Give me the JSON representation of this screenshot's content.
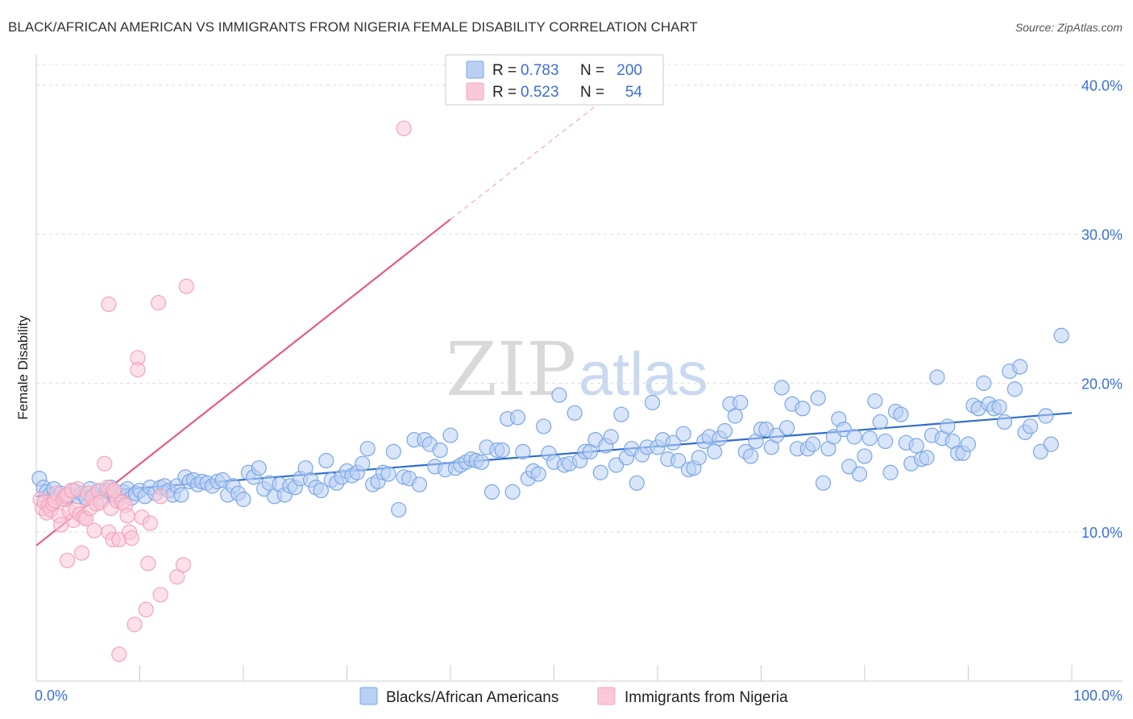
{
  "chart_data": {
    "type": "scatter",
    "title": "BLACK/AFRICAN AMERICAN VS IMMIGRANTS FROM NIGERIA FEMALE DISABILITY CORRELATION CHART",
    "source": "Source: ZipAtlas.com",
    "xlabel": "",
    "ylabel": "Female Disability",
    "xlim": [
      0,
      100
    ],
    "ylim": [
      0,
      41.5
    ],
    "x_tick_labels": [
      "0.0%",
      "100.0%"
    ],
    "y_ticks": [
      10,
      20,
      30,
      40
    ],
    "y_tick_labels": [
      "10.0%",
      "20.0%",
      "30.0%",
      "40.0%"
    ],
    "grid": true,
    "legend_position": "top-center",
    "watermark": {
      "zip": "ZIP",
      "atlas": "atlas"
    },
    "stats_legend": [
      {
        "r_label": "R =",
        "r_value": "0.783",
        "n_label": "N =",
        "n_value": "200"
      },
      {
        "r_label": "R =",
        "r_value": "0.523",
        "n_label": "N =",
        "n_value": "54"
      }
    ],
    "series": [
      {
        "name": "Blacks/African Americans",
        "color": "#7aa7e8",
        "fill": "#b9d0f3",
        "line_color": "#2e6dd0",
        "trend": {
          "x0": 0,
          "y0": 12.4,
          "x1": 100,
          "y1": 18.0
        },
        "points": [
          [
            0.3,
            13.6
          ],
          [
            0.7,
            13.0
          ],
          [
            1.0,
            12.7
          ],
          [
            1.3,
            12.5
          ],
          [
            1.7,
            12.9
          ],
          [
            2.0,
            12.3
          ],
          [
            2.4,
            12.6
          ],
          [
            2.8,
            12.2
          ],
          [
            3.2,
            12.5
          ],
          [
            3.6,
            12.8
          ],
          [
            4.0,
            12.4
          ],
          [
            4.4,
            12.6
          ],
          [
            4.8,
            12.3
          ],
          [
            5.2,
            12.9
          ],
          [
            5.6,
            12.5
          ],
          [
            6.0,
            12.7
          ],
          [
            6.4,
            12.2
          ],
          [
            6.8,
            12.8
          ],
          [
            7.2,
            13.0
          ],
          [
            7.6,
            12.4
          ],
          [
            8.0,
            12.5
          ],
          [
            8.4,
            12.7
          ],
          [
            8.8,
            12.9
          ],
          [
            9.2,
            12.3
          ],
          [
            9.6,
            12.6
          ],
          [
            10.0,
            12.8
          ],
          [
            10.5,
            12.4
          ],
          [
            11.0,
            13.0
          ],
          [
            11.5,
            12.6
          ],
          [
            12.0,
            13.0
          ],
          [
            12.4,
            13.1
          ],
          [
            12.8,
            12.8
          ],
          [
            13.2,
            12.5
          ],
          [
            13.6,
            13.1
          ],
          [
            14.0,
            12.5
          ],
          [
            14.4,
            13.7
          ],
          [
            14.8,
            13.4
          ],
          [
            15.2,
            13.5
          ],
          [
            15.6,
            13.2
          ],
          [
            16.0,
            13.4
          ],
          [
            16.5,
            13.3
          ],
          [
            17.0,
            13.1
          ],
          [
            17.5,
            13.4
          ],
          [
            18.0,
            13.5
          ],
          [
            18.5,
            12.5
          ],
          [
            19.0,
            13.1
          ],
          [
            19.5,
            12.6
          ],
          [
            20.0,
            12.2
          ],
          [
            20.5,
            14.0
          ],
          [
            21.0,
            13.7
          ],
          [
            21.5,
            14.3
          ],
          [
            22.0,
            12.9
          ],
          [
            22.5,
            13.3
          ],
          [
            23.0,
            12.4
          ],
          [
            23.5,
            13.2
          ],
          [
            24.0,
            12.5
          ],
          [
            24.5,
            13.1
          ],
          [
            25.0,
            13.0
          ],
          [
            25.5,
            13.6
          ],
          [
            26.0,
            14.3
          ],
          [
            26.5,
            13.5
          ],
          [
            27.0,
            13.0
          ],
          [
            27.5,
            12.8
          ],
          [
            28.0,
            14.8
          ],
          [
            28.5,
            13.5
          ],
          [
            29.0,
            13.3
          ],
          [
            29.5,
            13.7
          ],
          [
            30.0,
            14.1
          ],
          [
            30.5,
            13.8
          ],
          [
            31.0,
            14.0
          ],
          [
            31.5,
            14.6
          ],
          [
            32.0,
            15.6
          ],
          [
            32.5,
            13.2
          ],
          [
            33.0,
            13.4
          ],
          [
            33.5,
            14.0
          ],
          [
            34.0,
            13.9
          ],
          [
            34.5,
            15.4
          ],
          [
            35.0,
            11.5
          ],
          [
            35.5,
            13.7
          ],
          [
            36.0,
            13.6
          ],
          [
            36.5,
            16.2
          ],
          [
            37.0,
            13.2
          ],
          [
            37.5,
            16.2
          ],
          [
            38.0,
            15.9
          ],
          [
            38.5,
            14.4
          ],
          [
            39.0,
            15.5
          ],
          [
            39.5,
            14.2
          ],
          [
            40.0,
            16.5
          ],
          [
            40.5,
            14.3
          ],
          [
            41.0,
            14.5
          ],
          [
            41.5,
            14.7
          ],
          [
            42.0,
            14.9
          ],
          [
            42.5,
            14.8
          ],
          [
            43.0,
            14.7
          ],
          [
            43.5,
            15.7
          ],
          [
            44.0,
            12.7
          ],
          [
            44.5,
            15.5
          ],
          [
            45.0,
            15.5
          ],
          [
            45.5,
            17.6
          ],
          [
            46.0,
            12.7
          ],
          [
            46.5,
            17.7
          ],
          [
            47.0,
            15.4
          ],
          [
            47.5,
            13.6
          ],
          [
            48.0,
            14.1
          ],
          [
            48.5,
            13.9
          ],
          [
            49.0,
            17.1
          ],
          [
            49.5,
            15.3
          ],
          [
            50.0,
            14.7
          ],
          [
            50.5,
            19.2
          ],
          [
            51.0,
            14.5
          ],
          [
            51.5,
            14.6
          ],
          [
            52.0,
            18.0
          ],
          [
            52.5,
            14.8
          ],
          [
            53.0,
            15.4
          ],
          [
            53.5,
            15.4
          ],
          [
            54.0,
            16.2
          ],
          [
            54.5,
            14.0
          ],
          [
            55.0,
            15.8
          ],
          [
            55.5,
            16.4
          ],
          [
            56.0,
            14.5
          ],
          [
            56.5,
            17.9
          ],
          [
            57.0,
            15.0
          ],
          [
            57.5,
            15.6
          ],
          [
            58.0,
            13.3
          ],
          [
            58.5,
            15.2
          ],
          [
            59.0,
            15.7
          ],
          [
            59.5,
            18.7
          ],
          [
            60.0,
            15.7
          ],
          [
            60.5,
            16.2
          ],
          [
            61.0,
            14.9
          ],
          [
            61.5,
            16.0
          ],
          [
            62.0,
            14.8
          ],
          [
            62.5,
            16.6
          ],
          [
            63.0,
            14.2
          ],
          [
            63.5,
            14.3
          ],
          [
            64.0,
            15.0
          ],
          [
            64.5,
            16.1
          ],
          [
            65.0,
            16.4
          ],
          [
            65.5,
            15.4
          ],
          [
            66.0,
            16.3
          ],
          [
            66.5,
            16.8
          ],
          [
            67.0,
            18.6
          ],
          [
            67.5,
            17.8
          ],
          [
            68.0,
            18.7
          ],
          [
            68.5,
            15.4
          ],
          [
            69.0,
            15.1
          ],
          [
            69.5,
            16.1
          ],
          [
            70.0,
            16.9
          ],
          [
            70.5,
            16.9
          ],
          [
            71.0,
            15.7
          ],
          [
            71.5,
            16.5
          ],
          [
            72.0,
            19.7
          ],
          [
            72.5,
            17.0
          ],
          [
            73.0,
            18.6
          ],
          [
            73.5,
            15.6
          ],
          [
            74.0,
            18.3
          ],
          [
            74.5,
            15.6
          ],
          [
            75.0,
            15.9
          ],
          [
            75.5,
            19.0
          ],
          [
            76.0,
            13.3
          ],
          [
            76.5,
            15.6
          ],
          [
            77.0,
            16.4
          ],
          [
            77.5,
            17.6
          ],
          [
            78.0,
            16.9
          ],
          [
            78.5,
            14.4
          ],
          [
            79.0,
            16.4
          ],
          [
            79.5,
            13.9
          ],
          [
            80.0,
            15.1
          ],
          [
            80.5,
            16.3
          ],
          [
            81.0,
            18.8
          ],
          [
            81.5,
            17.4
          ],
          [
            82.0,
            16.1
          ],
          [
            82.5,
            14.0
          ],
          [
            83.0,
            18.1
          ],
          [
            83.5,
            17.9
          ],
          [
            84.0,
            16.0
          ],
          [
            84.5,
            14.6
          ],
          [
            85.0,
            15.8
          ],
          [
            85.5,
            14.9
          ],
          [
            86.0,
            15.0
          ],
          [
            86.5,
            16.5
          ],
          [
            87.0,
            20.4
          ],
          [
            87.5,
            16.3
          ],
          [
            88.0,
            17.1
          ],
          [
            88.5,
            16.1
          ],
          [
            89.0,
            15.3
          ],
          [
            89.5,
            15.3
          ],
          [
            90.0,
            15.9
          ],
          [
            90.5,
            18.5
          ],
          [
            91.0,
            18.3
          ],
          [
            91.5,
            20.0
          ],
          [
            92.0,
            18.6
          ],
          [
            92.5,
            18.3
          ],
          [
            93.0,
            18.4
          ],
          [
            93.5,
            17.4
          ],
          [
            94.0,
            20.8
          ],
          [
            94.5,
            19.6
          ],
          [
            95.0,
            21.1
          ],
          [
            95.5,
            16.7
          ],
          [
            96.0,
            17.1
          ],
          [
            97.0,
            15.4
          ],
          [
            97.5,
            17.8
          ],
          [
            98.0,
            15.9
          ],
          [
            99.0,
            23.2
          ]
        ]
      },
      {
        "name": "Immigrants from Nigeria",
        "color": "#f4a3bc",
        "fill": "#f9c9d7",
        "line_color": "#e55c87",
        "trend": {
          "x0": 0,
          "y0": 9.1,
          "x1": 40,
          "y1": 31.0
        },
        "trend_ext": {
          "x0": 40,
          "y0": 31.0,
          "x1": 54,
          "y1": 38.6
        },
        "points": [
          [
            0.4,
            12.2
          ],
          [
            0.6,
            11.6
          ],
          [
            0.8,
            12.0
          ],
          [
            1.0,
            11.3
          ],
          [
            1.2,
            11.8
          ],
          [
            1.4,
            11.5
          ],
          [
            1.6,
            11.9
          ],
          [
            1.8,
            12.1
          ],
          [
            2.0,
            12.6
          ],
          [
            2.2,
            11.1
          ],
          [
            2.4,
            10.5
          ],
          [
            2.6,
            12.2
          ],
          [
            2.8,
            12.4
          ],
          [
            3.0,
            12.5
          ],
          [
            3.2,
            11.4
          ],
          [
            3.4,
            12.8
          ],
          [
            3.6,
            10.8
          ],
          [
            3.8,
            11.5
          ],
          [
            4.0,
            12.9
          ],
          [
            4.2,
            11.2
          ],
          [
            4.4,
            8.6
          ],
          [
            4.6,
            11.0
          ],
          [
            4.8,
            10.9
          ],
          [
            5.0,
            12.6
          ],
          [
            5.2,
            11.6
          ],
          [
            5.4,
            12.3
          ],
          [
            5.6,
            10.1
          ],
          [
            5.8,
            11.9
          ],
          [
            6.0,
            12.8
          ],
          [
            6.2,
            12.0
          ],
          [
            6.6,
            14.6
          ],
          [
            6.9,
            13.0
          ],
          [
            7.0,
            10.0
          ],
          [
            7.2,
            11.6
          ],
          [
            7.4,
            9.5
          ],
          [
            7.6,
            12.6
          ],
          [
            7.8,
            12.1
          ],
          [
            8.0,
            9.5
          ],
          [
            8.3,
            12.0
          ],
          [
            8.6,
            11.8
          ],
          [
            9.0,
            10.0
          ],
          [
            9.2,
            9.6
          ],
          [
            9.5,
            3.8
          ],
          [
            9.8,
            21.7
          ],
          [
            10.2,
            11.0
          ],
          [
            10.6,
            4.8
          ],
          [
            11.0,
            10.6
          ],
          [
            7.5,
            12.8
          ],
          [
            8.0,
            1.8
          ],
          [
            7.0,
            25.3
          ],
          [
            12.0,
            12.4
          ],
          [
            11.8,
            25.4
          ],
          [
            14.5,
            26.5
          ],
          [
            35.5,
            37.1
          ]
        ]
      }
    ],
    "extra_points": {
      "Immigrants from Nigeria": [
        [
          3.0,
          8.1
        ],
        [
          9.8,
          20.9
        ],
        [
          10.8,
          7.9
        ],
        [
          12.0,
          5.8
        ],
        [
          13.6,
          7.0
        ],
        [
          14.2,
          7.8
        ],
        [
          8.8,
          11.1
        ]
      ]
    }
  },
  "legend_bottom": [
    "Blacks/African Americans",
    "Immigrants from Nigeria"
  ]
}
